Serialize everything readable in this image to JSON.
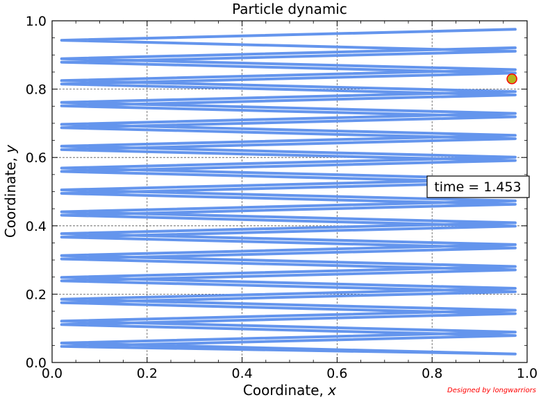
{
  "chart_data": {
    "type": "line",
    "title": "Particle dynamic",
    "xlabel_text": "Coordinate, ",
    "xlabel_var": "x",
    "ylabel_text": "Coordinate, ",
    "ylabel_var": "y",
    "xlim": [
      0.0,
      1.0
    ],
    "ylim": [
      0.0,
      1.0
    ],
    "xticks": [
      "0.0",
      "0.2",
      "0.4",
      "0.6",
      "0.8",
      "1.0"
    ],
    "yticks": [
      "0.0",
      "0.2",
      "0.4",
      "0.6",
      "0.8",
      "1.0"
    ],
    "grid": true,
    "line_color": "#6495ED",
    "marker_color": "#b5b51e",
    "marker_edge_color": "#ff0000",
    "series": [
      {
        "x": [
          0.975,
          0.02,
          0.975,
          0.02,
          0.975,
          0.02,
          0.975,
          0.02,
          0.975,
          0.02,
          0.975,
          0.02,
          0.975,
          0.02,
          0.975,
          0.02,
          0.975,
          0.02,
          0.975,
          0.02,
          0.975,
          0.02,
          0.975,
          0.02,
          0.975,
          0.02,
          0.975,
          0.02,
          0.975,
          0.02,
          0.975,
          0.02,
          0.975,
          0.02,
          0.975,
          0.02,
          0.975,
          0.02,
          0.975,
          0.02,
          0.975,
          0.02,
          0.975,
          0.02,
          0.975,
          0.02,
          0.975,
          0.02,
          0.975,
          0.02,
          0.975,
          0.02,
          0.975,
          0.02,
          0.975,
          0.02,
          0.975,
          0.02,
          0.975
        ],
        "y": [
          0.975,
          0.943,
          0.911,
          0.879,
          0.847,
          0.815,
          0.783,
          0.751,
          0.719,
          0.687,
          0.655,
          0.623,
          0.591,
          0.559,
          0.527,
          0.495,
          0.463,
          0.431,
          0.399,
          0.367,
          0.335,
          0.303,
          0.271,
          0.239,
          0.207,
          0.175,
          0.143,
          0.111,
          0.079,
          0.047,
          0.025,
          0.057,
          0.089,
          0.121,
          0.153,
          0.185,
          0.217,
          0.249,
          0.281,
          0.313,
          0.345,
          0.377,
          0.409,
          0.441,
          0.473,
          0.505,
          0.537,
          0.569,
          0.601,
          0.633,
          0.665,
          0.697,
          0.729,
          0.761,
          0.793,
          0.825,
          0.857,
          0.889,
          0.921
        ]
      }
    ],
    "marker": {
      "x": 0.968,
      "y": 0.83
    },
    "annotation": "time = 1.453",
    "credit": "Designed by longwarriors"
  }
}
